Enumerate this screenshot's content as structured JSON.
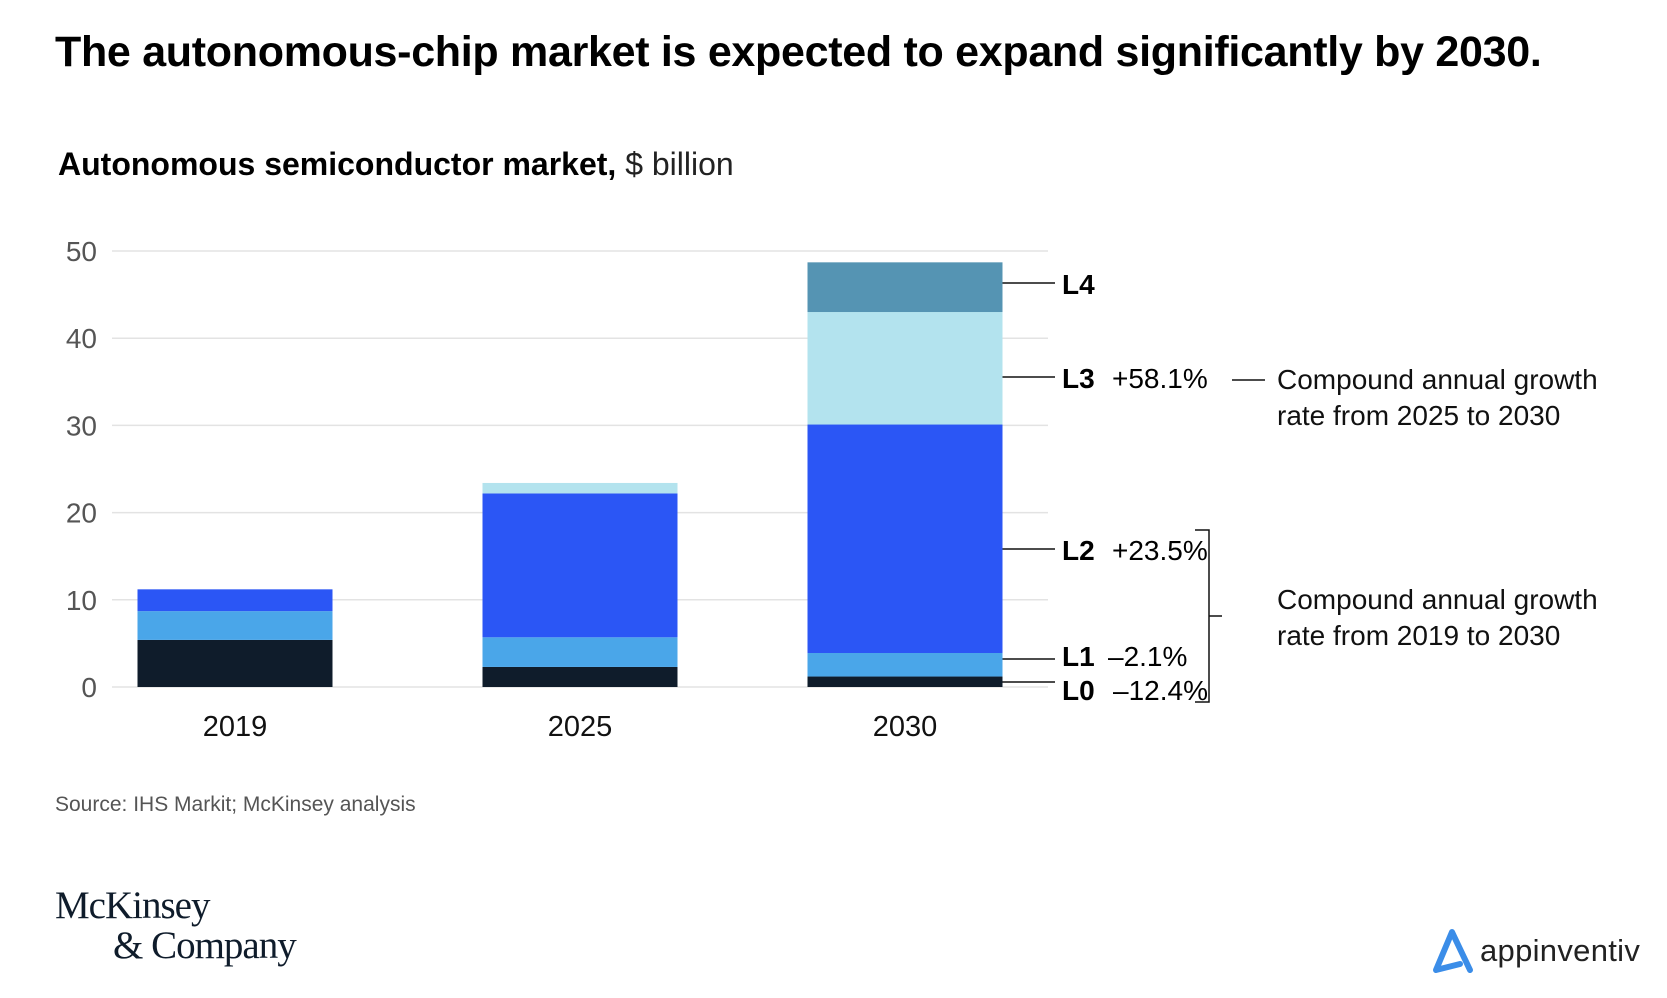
{
  "header": {
    "title": "The autonomous-chip market is expected to expand significantly by 2030.",
    "subtitle_bold": "Autonomous semiconductor market,",
    "subtitle_unit": " $ billion"
  },
  "chart_data": {
    "type": "bar",
    "stacked": true,
    "title": "Autonomous semiconductor market, $ billion",
    "xlabel": "",
    "ylabel": "$ billion",
    "ylim": [
      0,
      50
    ],
    "yticks": [
      "0",
      "10",
      "20",
      "30",
      "40",
      "50"
    ],
    "ytick_values": [
      0,
      10,
      20,
      30,
      40,
      50
    ],
    "grid": true,
    "categories": [
      "2019",
      "2025",
      "2030"
    ],
    "series": [
      {
        "name": "L0",
        "color": "#0f1c2b",
        "values": [
          5.4,
          2.3,
          1.2
        ]
      },
      {
        "name": "L1",
        "color": "#4aa6e9",
        "values": [
          3.3,
          3.4,
          2.7
        ]
      },
      {
        "name": "L2",
        "color": "#2b56f5",
        "values": [
          2.5,
          16.5,
          26.2
        ]
      },
      {
        "name": "L3",
        "color": "#b3e3ee",
        "values": [
          0,
          1.2,
          12.9
        ]
      },
      {
        "name": "L4",
        "color": "#5594b3",
        "values": [
          0,
          0,
          5.7
        ]
      }
    ],
    "annotations": [
      {
        "level": "L4",
        "cagr": ""
      },
      {
        "level": "L3",
        "cagr": "+58.1%"
      },
      {
        "level": "L2",
        "cagr": "+23.5%"
      },
      {
        "level": "L1",
        "cagr": "–2.1%"
      },
      {
        "level": "L0",
        "cagr": "–12.4%"
      }
    ],
    "notes": {
      "cagr_2025_2030": [
        "Compound annual growth",
        "rate from 2025 to 2030"
      ],
      "cagr_2019_2030": [
        "Compound annual growth",
        "rate from 2019 to 2030"
      ]
    }
  },
  "footer": {
    "source": "Source: IHS Markit; McKinsey analysis",
    "logo_line1": "McKinsey",
    "logo_line2": "& Company",
    "brand": "appinventiv"
  }
}
